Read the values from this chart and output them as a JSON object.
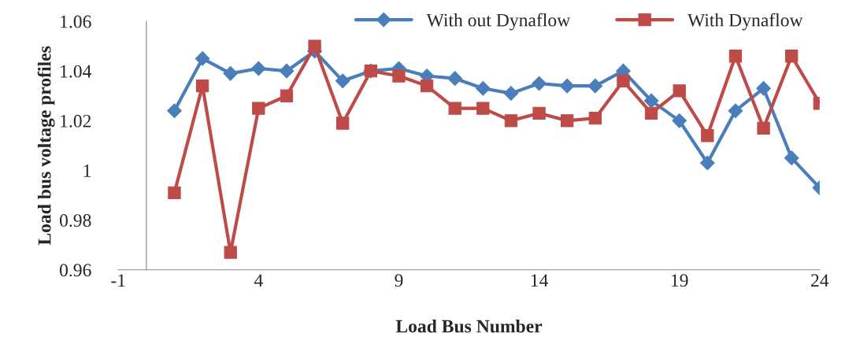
{
  "chart_data": {
    "type": "line",
    "xlabel": "Load Bus Number",
    "ylabel": "Load bus voltage profiles",
    "x": [
      1,
      2,
      3,
      4,
      5,
      6,
      7,
      8,
      9,
      10,
      11,
      12,
      13,
      14,
      15,
      16,
      17,
      18,
      19,
      20,
      21,
      22,
      23,
      24
    ],
    "series": [
      {
        "name": "With out Dynaflow",
        "color": "#4a7ebb",
        "marker": "diamond",
        "values": [
          1.024,
          1.045,
          1.039,
          1.041,
          1.04,
          1.048,
          1.036,
          1.04,
          1.041,
          1.038,
          1.037,
          1.033,
          1.031,
          1.035,
          1.034,
          1.034,
          1.04,
          1.028,
          1.02,
          1.003,
          1.024,
          1.033,
          1.005,
          0.993
        ]
      },
      {
        "name": "With Dynaflow",
        "color": "#be4b48",
        "marker": "square",
        "values": [
          0.991,
          1.034,
          0.967,
          1.025,
          1.03,
          1.05,
          1.019,
          1.04,
          1.038,
          1.034,
          1.025,
          1.025,
          1.02,
          1.023,
          1.02,
          1.021,
          1.036,
          1.023,
          1.032,
          1.014,
          1.046,
          1.017,
          1.046,
          1.027
        ]
      }
    ],
    "xlim": [
      -1,
      24
    ],
    "xticks": [
      -1,
      4,
      9,
      14,
      19,
      24
    ],
    "ylim": [
      0.96,
      1.06
    ],
    "yticks": [
      {
        "value": 0.96,
        "label": "0.96"
      },
      {
        "value": 0.98,
        "label": "0.98"
      },
      {
        "value": 1.0,
        "label": "1"
      },
      {
        "value": 1.02,
        "label": "1.02"
      },
      {
        "value": 1.04,
        "label": "1.04"
      },
      {
        "value": 1.06,
        "label": "1.06"
      }
    ],
    "grid": false,
    "legend": "top right",
    "line_style": "solid"
  }
}
